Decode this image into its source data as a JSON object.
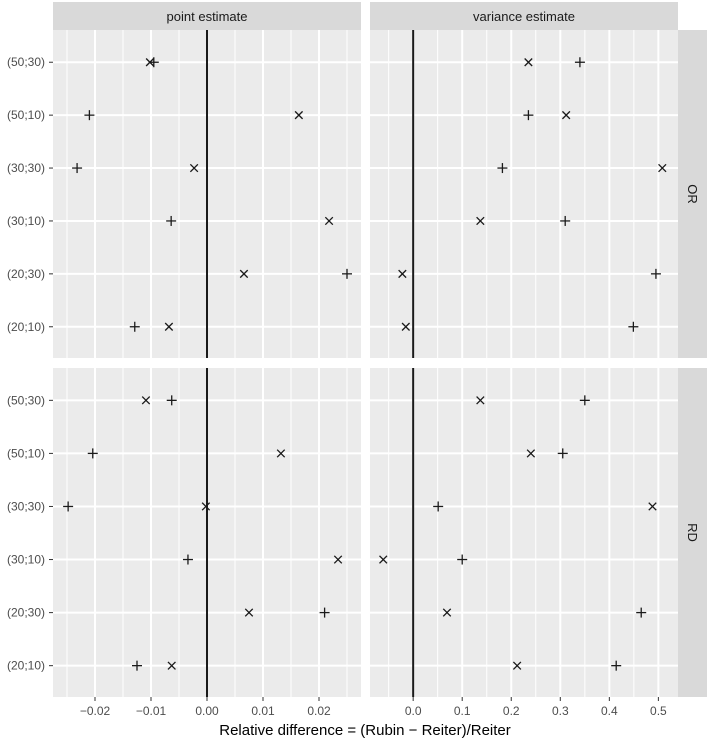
{
  "chart_data": {
    "type": "scatter",
    "title": "",
    "xlabel": "Relative difference = (Rubin − Reiter)/Reiter",
    "ylabel": "",
    "layout": "facet_grid",
    "facet_columns": [
      "point estimate",
      "variance estimate"
    ],
    "facet_rows": [
      "OR",
      "RD"
    ],
    "categories": [
      "(50;30)",
      "(50;10)",
      "(30;30)",
      "(30;10)",
      "(20;30)",
      "(20;10)"
    ],
    "marker_legend": {
      "plus": "+",
      "cross": "×"
    },
    "reference_line": 0,
    "grid": true,
    "legend": "none",
    "x_axes": {
      "point estimate": {
        "xlim": [
          -0.0275,
          0.0275
        ],
        "ticks": [
          -0.02,
          -0.01,
          0.0,
          0.01,
          0.02
        ],
        "tick_labels": [
          "−0.02",
          "−0.01",
          "0.00",
          "0.01",
          "0.02"
        ]
      },
      "variance estimate": {
        "xlim": [
          -0.088,
          0.54
        ],
        "ticks": [
          0.0,
          0.1,
          0.2,
          0.3,
          0.4,
          0.5
        ],
        "tick_labels": [
          "0.0",
          "0.1",
          "0.2",
          "0.3",
          "0.4",
          "0.5"
        ]
      }
    },
    "panels": [
      {
        "row": "OR",
        "column": "point estimate",
        "series": [
          {
            "name": "plus",
            "values": [
              -0.0095,
              -0.021,
              -0.0232,
              -0.0064,
              0.025,
              -0.0129
            ]
          },
          {
            "name": "cross",
            "values": [
              -0.0102,
              0.0164,
              -0.0023,
              0.0218,
              0.0066,
              -0.0068
            ]
          }
        ]
      },
      {
        "row": "OR",
        "column": "variance estimate",
        "series": [
          {
            "name": "plus",
            "values": [
              0.34,
              0.235,
              0.182,
              0.31,
              0.495,
              0.449
            ]
          },
          {
            "name": "cross",
            "values": [
              0.235,
              0.312,
              0.508,
              0.137,
              -0.022,
              -0.015
            ]
          }
        ]
      },
      {
        "row": "RD",
        "column": "point estimate",
        "series": [
          {
            "name": "plus",
            "values": [
              -0.0063,
              -0.0204,
              -0.0248,
              -0.0034,
              0.021,
              -0.0125
            ]
          },
          {
            "name": "cross",
            "values": [
              -0.0109,
              0.0132,
              -0.0002,
              0.0234,
              0.0075,
              -0.0063
            ]
          }
        ]
      },
      {
        "row": "RD",
        "column": "variance estimate",
        "series": [
          {
            "name": "plus",
            "values": [
              0.35,
              0.305,
              0.051,
              0.1,
              0.465,
              0.414
            ]
          },
          {
            "name": "cross",
            "values": [
              0.137,
              0.24,
              0.488,
              -0.061,
              0.069,
              0.212
            ]
          }
        ]
      }
    ]
  },
  "colors": {
    "panel_background": "#ebebeb",
    "strip_background": "#d9d9d9",
    "grid": "#ffffff",
    "reference_line": "#1a1a1a",
    "marker": "#1a1a1a",
    "tick_text": "#4d4d4d",
    "tick_mark": "#333333"
  }
}
